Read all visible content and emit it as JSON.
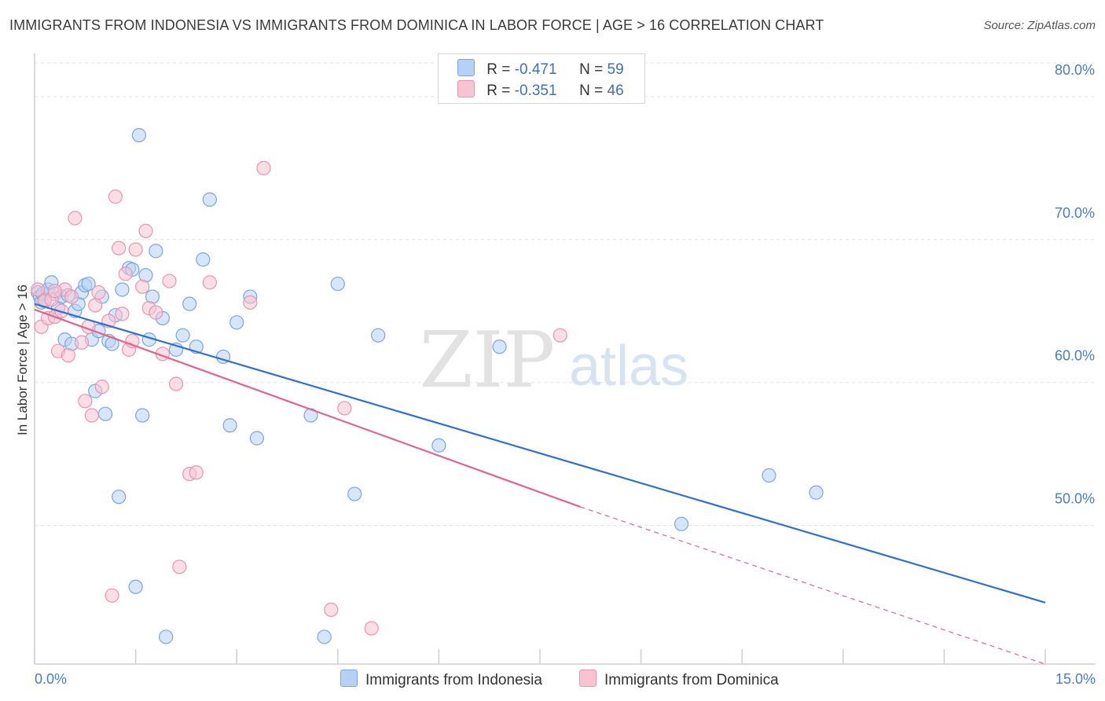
{
  "header": {
    "title": "IMMIGRANTS FROM INDONESIA VS IMMIGRANTS FROM DOMINICA IN LABOR FORCE | AGE > 16 CORRELATION CHART",
    "source": "Source: ZipAtlas.com"
  },
  "watermark": {
    "zip": "ZIP",
    "atlas": "atlas"
  },
  "legend": {
    "indonesia": {
      "r_label": "R =",
      "r_value": "-0.471",
      "n_label": "N =",
      "n_value": "59"
    },
    "dominica": {
      "r_label": "R =",
      "r_value": "-0.351",
      "n_label": "N =",
      "n_value": "46"
    }
  },
  "colors": {
    "indonesia_fill": "#b7d1f5",
    "indonesia_stroke": "#7aa6e0",
    "indonesia_line": "#2f6fd1",
    "dominica_fill": "#f9c3d2",
    "dominica_stroke": "#ec93ad",
    "dominica_line": "#e0648c",
    "grid": "#e3e3e3",
    "tick_text": "#4a7cc7"
  },
  "chart_data": {
    "type": "scatter",
    "title": "IMMIGRANTS FROM INDONESIA VS IMMIGRANTS FROM DOMINICA IN LABOR FORCE | AGE > 16 CORRELATION CHART",
    "xlabel": "",
    "ylabel": "In Labor Force | Age > 16",
    "xlim": [
      0,
      15
    ],
    "ylim": [
      40.3,
      82.8
    ],
    "x_tick_labels": [
      "0.0%",
      "15.0%"
    ],
    "y_ticks": [
      50,
      60,
      70,
      80
    ],
    "y_tick_labels": [
      "50.0%",
      "60.0%",
      "70.0%",
      "80.0%"
    ],
    "grid": true,
    "legend_position": "top-center",
    "series": [
      {
        "name": "Immigrants from Indonesia",
        "points": [
          [
            0.05,
            66.3
          ],
          [
            0.08,
            66.0
          ],
          [
            0.1,
            65.6
          ],
          [
            0.12,
            66.2
          ],
          [
            0.15,
            65.8
          ],
          [
            0.2,
            66.5
          ],
          [
            0.25,
            67.0
          ],
          [
            0.3,
            66.2
          ],
          [
            0.35,
            65.2
          ],
          [
            0.4,
            66.0
          ],
          [
            0.45,
            63.0
          ],
          [
            0.5,
            66.1
          ],
          [
            0.55,
            62.7
          ],
          [
            0.6,
            65.0
          ],
          [
            0.65,
            65.5
          ],
          [
            0.7,
            66.3
          ],
          [
            0.75,
            66.8
          ],
          [
            0.8,
            66.9
          ],
          [
            0.85,
            63.0
          ],
          [
            0.9,
            59.4
          ],
          [
            0.95,
            63.6
          ],
          [
            1.0,
            66.0
          ],
          [
            1.05,
            57.8
          ],
          [
            1.1,
            62.9
          ],
          [
            1.15,
            62.7
          ],
          [
            1.2,
            64.7
          ],
          [
            1.25,
            52.0
          ],
          [
            1.3,
            66.5
          ],
          [
            1.4,
            68.0
          ],
          [
            1.45,
            67.9
          ],
          [
            1.5,
            45.7
          ],
          [
            1.55,
            77.3
          ],
          [
            1.6,
            57.7
          ],
          [
            1.65,
            67.5
          ],
          [
            1.7,
            63.0
          ],
          [
            1.75,
            66.0
          ],
          [
            1.8,
            69.2
          ],
          [
            1.9,
            64.5
          ],
          [
            1.95,
            42.2
          ],
          [
            2.1,
            62.3
          ],
          [
            2.2,
            63.3
          ],
          [
            2.3,
            65.5
          ],
          [
            2.4,
            62.5
          ],
          [
            2.5,
            68.6
          ],
          [
            2.6,
            72.8
          ],
          [
            2.8,
            61.8
          ],
          [
            2.9,
            57.0
          ],
          [
            3.0,
            64.2
          ],
          [
            3.2,
            66.0
          ],
          [
            3.3,
            56.1
          ],
          [
            4.1,
            57.7
          ],
          [
            4.3,
            42.2
          ],
          [
            4.5,
            66.9
          ],
          [
            4.75,
            52.2
          ],
          [
            5.1,
            63.3
          ],
          [
            6.0,
            55.6
          ],
          [
            6.9,
            62.5
          ],
          [
            9.6,
            50.1
          ],
          [
            10.9,
            53.5
          ],
          [
            11.6,
            52.3
          ]
        ],
        "trend_start": [
          0.0,
          65.5
        ],
        "trend_end": [
          15.0,
          44.6
        ]
      },
      {
        "name": "Immigrants from Dominica",
        "points": [
          [
            0.05,
            66.5
          ],
          [
            0.1,
            63.9
          ],
          [
            0.15,
            65.7
          ],
          [
            0.2,
            64.5
          ],
          [
            0.25,
            65.8
          ],
          [
            0.3,
            64.6
          ],
          [
            0.35,
            62.2
          ],
          [
            0.4,
            65.0
          ],
          [
            0.45,
            66.5
          ],
          [
            0.5,
            61.9
          ],
          [
            0.55,
            66.0
          ],
          [
            0.6,
            71.5
          ],
          [
            0.7,
            62.8
          ],
          [
            0.75,
            58.7
          ],
          [
            0.8,
            63.9
          ],
          [
            0.85,
            57.7
          ],
          [
            0.9,
            65.4
          ],
          [
            0.95,
            66.3
          ],
          [
            1.0,
            59.7
          ],
          [
            1.1,
            64.3
          ],
          [
            1.15,
            45.1
          ],
          [
            1.2,
            73.0
          ],
          [
            1.25,
            69.4
          ],
          [
            1.3,
            64.8
          ],
          [
            1.35,
            67.6
          ],
          [
            1.4,
            62.3
          ],
          [
            1.45,
            62.9
          ],
          [
            1.5,
            69.3
          ],
          [
            1.6,
            66.7
          ],
          [
            1.65,
            70.6
          ],
          [
            1.7,
            65.2
          ],
          [
            1.8,
            64.9
          ],
          [
            1.9,
            62.0
          ],
          [
            2.0,
            67.1
          ],
          [
            2.1,
            59.9
          ],
          [
            2.15,
            47.1
          ],
          [
            2.3,
            53.6
          ],
          [
            2.4,
            53.7
          ],
          [
            2.6,
            67.0
          ],
          [
            3.2,
            65.6
          ],
          [
            3.4,
            75.0
          ],
          [
            4.4,
            44.1
          ],
          [
            4.6,
            58.2
          ],
          [
            5.0,
            42.8
          ],
          [
            7.8,
            63.3
          ],
          [
            0.3,
            66.4
          ]
        ],
        "trend_start": [
          0.0,
          65.1
        ],
        "trend_end": [
          8.1,
          51.3
        ],
        "trend_dashed_end": [
          15.0,
          40.3
        ]
      }
    ]
  }
}
